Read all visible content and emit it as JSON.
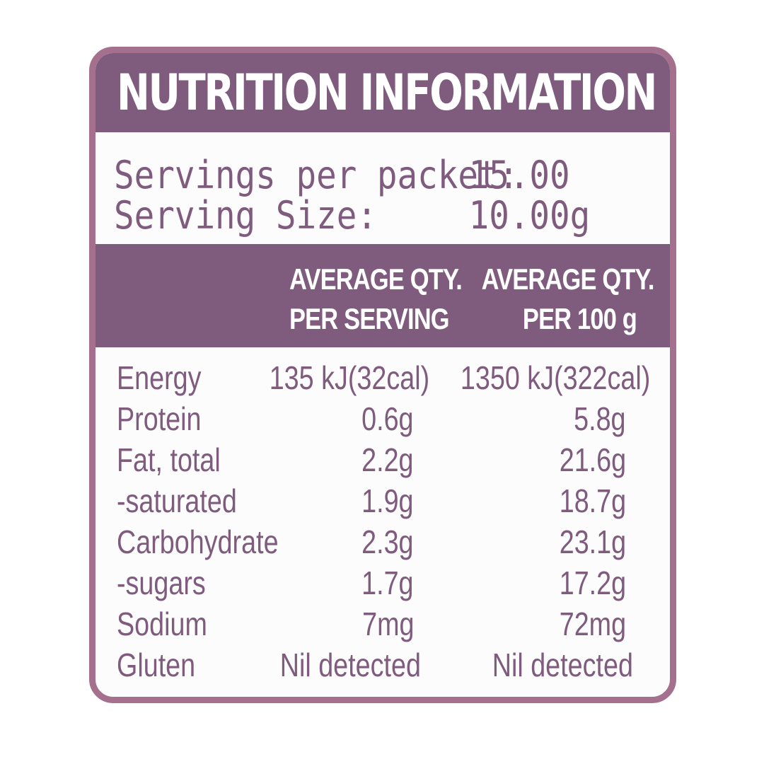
{
  "title": "NUTRITION INFORMATION",
  "servings": {
    "per_packet_label": "Servings per packet:",
    "per_packet_value": "15.00",
    "size_label": "Serving Size:",
    "size_value": "10.00g"
  },
  "columns": {
    "serving_line1": "AVERAGE QTY.",
    "serving_line2": "PER SERVING",
    "per100_line1": "AVERAGE QTY.",
    "per100_line2": "PER 100 g"
  },
  "nutrients": [
    {
      "name": "Energy",
      "serving": "135 kJ(32cal)",
      "per100": "1350 kJ(322cal)"
    },
    {
      "name": "Protein",
      "serving": "0.6g",
      "per100": "5.8g"
    },
    {
      "name": "Fat, total",
      "serving": "2.2g",
      "per100": "21.6g"
    },
    {
      "name": "-saturated",
      "serving": "1.9g",
      "per100": "18.7g"
    },
    {
      "name": "Carbohydrate",
      "serving": "2.3g",
      "per100": "23.1g"
    },
    {
      "name": "-sugars",
      "serving": "1.7g",
      "per100": "17.2g"
    },
    {
      "name": "Sodium",
      "serving": "7mg",
      "per100": "72mg"
    },
    {
      "name": "Gluten",
      "serving": "Nil detected",
      "per100": "Nil detected"
    }
  ],
  "colors": {
    "purple": "#7f5b7e",
    "border": "#a4708e",
    "background": "#fdfcfd"
  }
}
